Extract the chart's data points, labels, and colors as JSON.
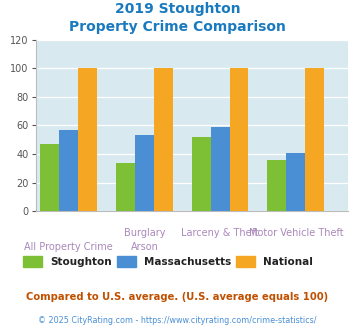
{
  "title_line1": "2019 Stoughton",
  "title_line2": "Property Crime Comparison",
  "title_color": "#1a7abf",
  "groups": [
    {
      "stoughton": 47,
      "massachusetts": 57,
      "national": 100
    },
    {
      "stoughton": 34,
      "massachusetts": 53,
      "national": 100
    },
    {
      "stoughton": 52,
      "massachusetts": 59,
      "national": 100
    },
    {
      "stoughton": 36,
      "massachusetts": 41,
      "national": 100
    }
  ],
  "top_labels": [
    "",
    "Burglary",
    "Larceny & Theft",
    "Motor Vehicle Theft"
  ],
  "bot_labels": [
    "All Property Crime",
    "Arson",
    "",
    ""
  ],
  "colors": {
    "stoughton": "#7dc035",
    "massachusetts": "#4a8fd4",
    "national": "#f5a623"
  },
  "ylim": [
    0,
    120
  ],
  "yticks": [
    0,
    20,
    40,
    60,
    80,
    100,
    120
  ],
  "bg_color": "#d8eaf0",
  "legend_labels": [
    "Stoughton",
    "Massachusetts",
    "National"
  ],
  "footnote1": "Compared to U.S. average. (U.S. average equals 100)",
  "footnote2": "© 2025 CityRating.com - https://www.cityrating.com/crime-statistics/",
  "footnote1_color": "#c05000",
  "footnote2_color": "#4a8fd4",
  "xlabel_top_color": "#aa88bb",
  "xlabel_bot_color": "#aa88bb"
}
